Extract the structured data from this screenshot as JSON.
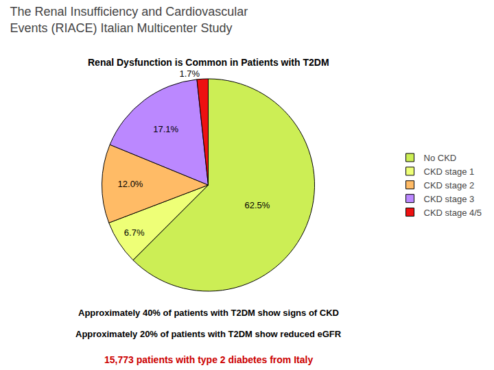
{
  "chart_data": {
    "type": "pie",
    "title": "The Renal Insufficiency and Cardiovascular\nEvents (RIACE) Italian Multicenter Study",
    "subtitle": "Renal Dysfunction is Common in Patients with T2DM",
    "categories": [
      "No CKD",
      "CKD stage 1",
      "CKD stage 2",
      "CKD stage 3",
      "CKD stage 4/5"
    ],
    "values": [
      62.5,
      6.7,
      12.0,
      17.1,
      1.7
    ],
    "value_labels": [
      "62.5%",
      "6.7%",
      "12.0%",
      "17.1%",
      "1.7%"
    ],
    "colors": [
      "#CCEE55",
      "#EEFF77",
      "#FFBB66",
      "#BB88FF",
      "#EE1111"
    ],
    "data_labels": true,
    "legend": "right",
    "annotations": [
      {
        "text": "Approximately 40% of patients with T2DM show signs of CKD"
      },
      {
        "text": "Approximately 20% of patients with T2DM show reduced eGFR"
      },
      {
        "text": "15,773 patients with type 2 diabetes from Italy",
        "color": "#CC0000"
      }
    ]
  }
}
